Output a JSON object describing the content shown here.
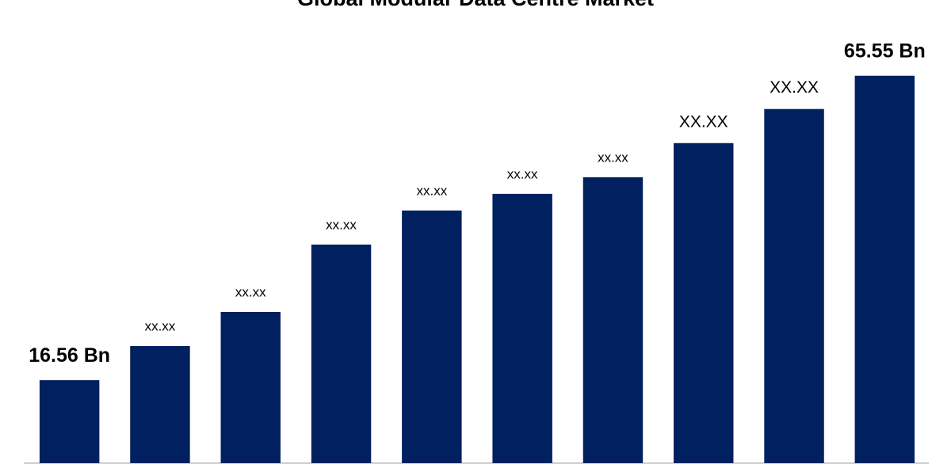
{
  "chart_data": {
    "type": "bar",
    "title": "Global Modular Data Centre Market",
    "categories": [
      null,
      null,
      null,
      null,
      null,
      null,
      null,
      null,
      null,
      null
    ],
    "values": [
      16.56,
      22.05,
      27.54,
      38.38,
      43.86,
      46.54,
      49.22,
      54.71,
      60.2,
      65.55
    ],
    "value_labels": [
      "16.56 Bn",
      "xx.xx",
      "xx.xx",
      "xx.xx",
      "xx.xx",
      "xx.xx",
      "xx.xx",
      "XX.XX",
      "XX.XX",
      "65.55 Bn"
    ],
    "color": "#002060",
    "ylim": [
      3.2,
      70.1
    ],
    "grid": false
  }
}
